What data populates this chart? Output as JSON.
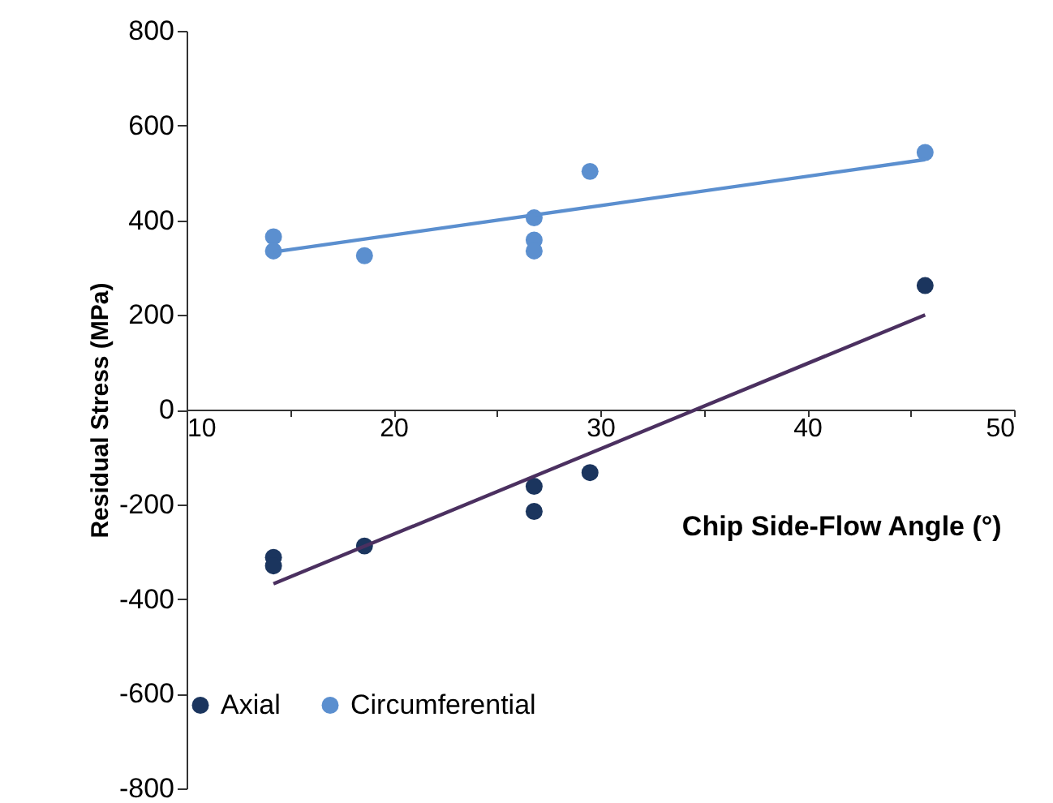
{
  "chart_data": {
    "type": "scatter",
    "xlabel": "Chip Side-Flow Angle (°)",
    "ylabel": "Residual Stress (MPa)",
    "xlim": [
      10,
      50
    ],
    "xticks": [
      10,
      {
        "value": 15,
        "label": null
      },
      20,
      {
        "value": 25,
        "label": null
      },
      30,
      {
        "value": 35,
        "label": null
      },
      40,
      {
        "value": 45,
        "label": null
      },
      50
    ],
    "ylim": [
      -800,
      800
    ],
    "yticks": [
      -800,
      -600,
      -400,
      -200,
      0,
      200,
      400,
      600,
      800
    ],
    "grid": false,
    "legend": "bottom",
    "series": [
      {
        "marker": "circle",
        "name": "Axial",
        "color": "#1b355e",
        "x": [
          14.2,
          14.2,
          18.6,
          26.8,
          26.8,
          29.5,
          45.7
        ],
        "values": [
          -312,
          -330,
          -288,
          -162,
          -215,
          -133,
          262
        ]
      },
      {
        "marker": "circle",
        "name": "Circumferential",
        "color": "#5b8fcf",
        "x": [
          14.2,
          14.2,
          18.6,
          26.8,
          26.8,
          26.8,
          29.5,
          45.7
        ],
        "values": [
          365,
          335,
          325,
          405,
          358,
          335,
          503,
          543
        ]
      },
      {
        "type": "line",
        "marker": "none",
        "line_style": "solid",
        "color": "#4b3060",
        "x": [
          14.2,
          45.7
        ],
        "values": [
          -368,
          200
        ]
      },
      {
        "type": "line",
        "marker": "none",
        "line_style": "solid",
        "color": "#5b8fcf",
        "x": [
          14.2,
          45.7
        ],
        "values": [
          333,
          528
        ]
      }
    ]
  }
}
